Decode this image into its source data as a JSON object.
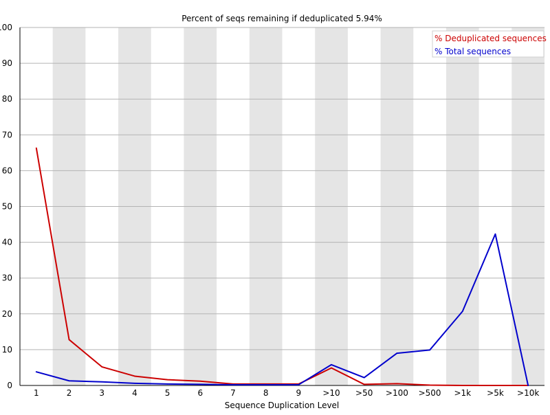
{
  "chart_data": {
    "type": "line",
    "title": "Percent of seqs remaining if deduplicated 5.94%",
    "xlabel": "Sequence Duplication Level",
    "ylabel": "",
    "categories": [
      "1",
      "2",
      "3",
      "4",
      "5",
      "6",
      "7",
      "8",
      "9",
      ">10",
      ">50",
      ">100",
      ">500",
      ">1k",
      ">5k",
      ">10k"
    ],
    "ylim": [
      0,
      100
    ],
    "yticks": [
      0,
      10,
      20,
      30,
      40,
      50,
      60,
      70,
      80,
      90,
      100
    ],
    "grid": "horizontal",
    "shading": "alternating vertical bands",
    "legend": {
      "placement": "top-right",
      "items": [
        "% Deduplicated sequences",
        "% Total sequences"
      ]
    },
    "series": [
      {
        "name": "% Deduplicated sequences",
        "color": "#cc0000",
        "values": [
          66.3,
          12.8,
          5.2,
          2.6,
          1.6,
          1.2,
          0.4,
          0.4,
          0.4,
          4.9,
          0.3,
          0.5,
          0.1,
          0.0,
          0.0,
          0.0
        ]
      },
      {
        "name": "% Total sequences",
        "color": "#0000cc",
        "values": [
          3.8,
          1.3,
          1.0,
          0.6,
          0.4,
          0.3,
          0.2,
          0.2,
          0.2,
          5.8,
          2.2,
          9.0,
          9.9,
          20.7,
          42.3,
          0.0
        ]
      }
    ]
  }
}
